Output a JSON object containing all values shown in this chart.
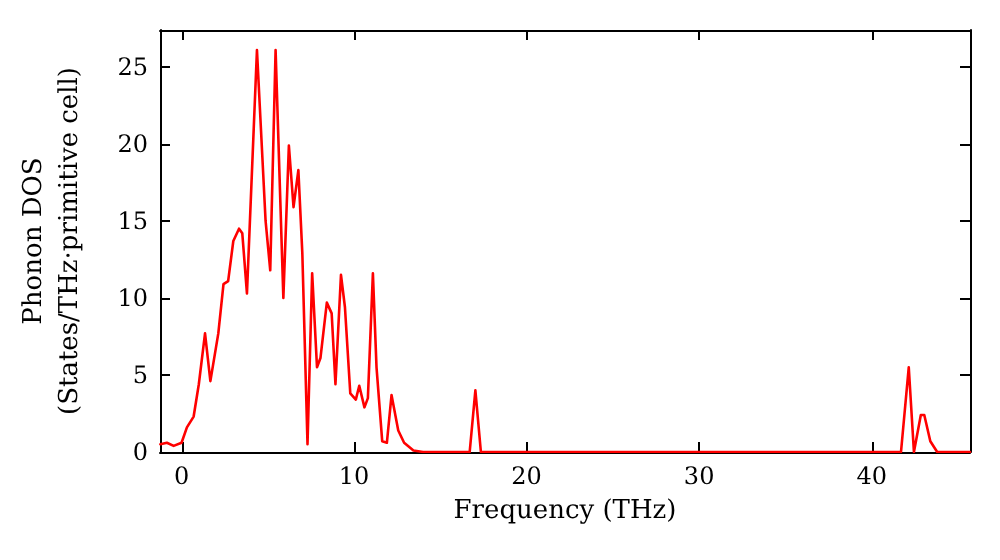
{
  "chart_data": {
    "type": "line",
    "xlabel": "Frequency (THz)",
    "ylabel": "Phonon DOS\n(States/THz·primitive cell)",
    "xlim": [
      -1.25,
      45.7
    ],
    "xticks": [
      0,
      10,
      20,
      30,
      40
    ],
    "ylim": [
      0,
      27.4
    ],
    "yticks": [
      0,
      5,
      10,
      15,
      20,
      25
    ],
    "grid": false,
    "marker": "none",
    "line_style": "solid",
    "series": [
      {
        "color": "#ff0000",
        "x": [
          -1.23,
          -0.85,
          -0.46,
          0,
          0.31,
          0.7,
          1.0,
          1.36,
          1.67,
          2.13,
          2.43,
          2.7,
          3.0,
          3.33,
          3.52,
          3.79,
          4.37,
          4.87,
          5.14,
          5.45,
          5.9,
          6.22,
          6.49,
          6.77,
          7.0,
          7.3,
          7.57,
          7.85,
          8.05,
          8.42,
          8.7,
          8.92,
          9.24,
          9.47,
          9.78,
          10.1,
          10.3,
          10.6,
          10.8,
          11.09,
          11.3,
          11.63,
          11.9,
          12.17,
          12.56,
          12.9,
          13.44,
          14.0,
          16.7,
          17.03,
          17.35,
          41.7,
          42.15,
          42.45,
          42.85,
          43.05,
          43.4,
          43.8,
          45.7
        ],
        "values": [
          0.5,
          0.6,
          0.4,
          0.6,
          1.6,
          2.3,
          4.4,
          7.7,
          4.6,
          7.7,
          10.9,
          11.1,
          13.7,
          14.5,
          14.2,
          10.3,
          26.1,
          15.0,
          11.8,
          26.1,
          10.0,
          19.9,
          15.9,
          18.3,
          12.9,
          0.5,
          11.6,
          5.5,
          6.1,
          9.7,
          9.0,
          4.4,
          11.5,
          9.4,
          3.8,
          3.4,
          4.3,
          2.9,
          3.5,
          11.6,
          5.5,
          0.7,
          0.6,
          3.7,
          1.4,
          0.6,
          0.1,
          0,
          0,
          4.0,
          0,
          0,
          5.5,
          0,
          2.4,
          2.4,
          0.7,
          0,
          0
        ]
      }
    ]
  }
}
